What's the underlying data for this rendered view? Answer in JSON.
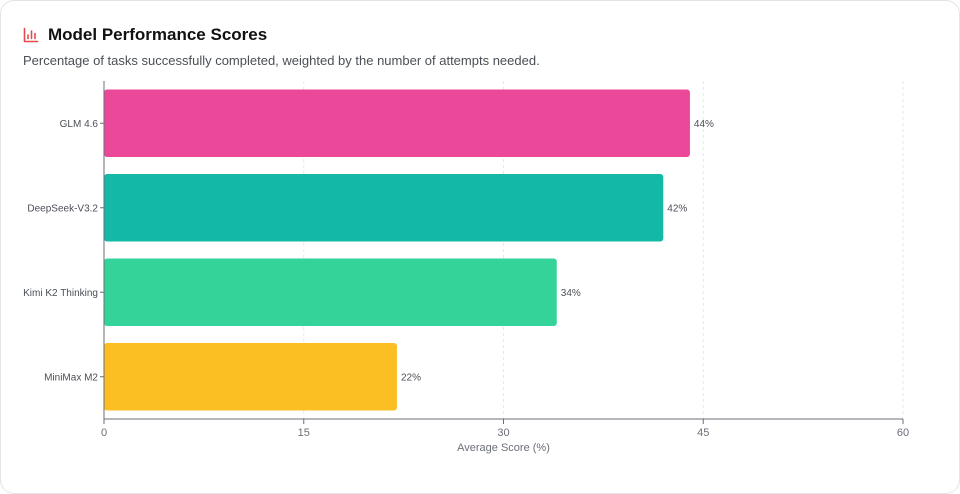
{
  "header": {
    "icon": "bar-chart-icon",
    "title": "Model Performance Scores",
    "subtitle": "Percentage of tasks successfully completed, weighted by the number of attempts needed."
  },
  "chart_data": {
    "type": "bar",
    "orientation": "horizontal",
    "title": "Model Performance Scores",
    "xlabel": "Average Score (%)",
    "ylabel": "",
    "xlim": [
      0,
      60
    ],
    "xticks": [
      0,
      15,
      30,
      45,
      60
    ],
    "grid": "vertical-dashed",
    "categories": [
      "GLM 4.6",
      "DeepSeek-V3.2",
      "Kimi K2 Thinking",
      "MiniMax M2"
    ],
    "values": [
      44,
      42,
      34,
      22
    ],
    "value_labels": [
      "44%",
      "42%",
      "34%",
      "22%"
    ],
    "colors": [
      "#ec4899",
      "#14b8a6",
      "#34d399",
      "#fbbf24"
    ]
  }
}
